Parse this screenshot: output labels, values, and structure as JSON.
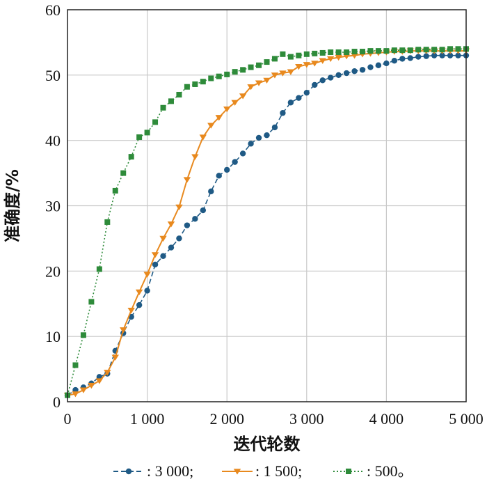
{
  "chart_data": {
    "type": "line",
    "xlabel": "迭代轮数",
    "ylabel": "准确度/%",
    "xlim": [
      0,
      5000
    ],
    "ylim": [
      0,
      60
    ],
    "x_ticks": [
      0,
      1000,
      2000,
      3000,
      4000,
      5000
    ],
    "x_tick_labels": [
      "0",
      "1 000",
      "2 000",
      "3 000",
      "4 000",
      "5 000"
    ],
    "y_ticks": [
      0,
      10,
      20,
      30,
      40,
      50,
      60
    ],
    "y_tick_labels": [
      "0",
      "10",
      "20",
      "30",
      "40",
      "50",
      "60"
    ],
    "grid": true,
    "legend_position": "bottom",
    "series": [
      {
        "name": ": 3 000;",
        "color": "#1f5a85",
        "line_style": "dashed",
        "marker": "circle",
        "x": [
          0,
          100,
          200,
          300,
          400,
          500,
          600,
          700,
          800,
          900,
          1000,
          1100,
          1200,
          1300,
          1400,
          1500,
          1600,
          1700,
          1800,
          1900,
          2000,
          2100,
          2200,
          2300,
          2400,
          2500,
          2600,
          2700,
          2800,
          2900,
          3000,
          3100,
          3200,
          3300,
          3400,
          3500,
          3600,
          3700,
          3800,
          3900,
          4000,
          4100,
          4200,
          4300,
          4400,
          4500,
          4600,
          4700,
          4800,
          4900,
          5000
        ],
        "y": [
          1.0,
          1.8,
          2.2,
          2.8,
          3.8,
          4.3,
          7.8,
          10.5,
          13.0,
          14.8,
          17.0,
          21.0,
          22.3,
          23.6,
          25.0,
          27.0,
          28.0,
          29.3,
          32.2,
          34.6,
          35.5,
          36.7,
          38.0,
          39.5,
          40.4,
          40.8,
          42.0,
          44.2,
          45.8,
          46.5,
          47.3,
          48.5,
          49.2,
          49.6,
          50.0,
          50.3,
          50.6,
          50.8,
          51.2,
          51.5,
          51.8,
          52.2,
          52.5,
          52.6,
          52.8,
          52.9,
          53.0,
          53.0,
          53.0,
          53.0,
          53.0
        ]
      },
      {
        "name": ": 1 500;",
        "color": "#e8891e",
        "line_style": "solid",
        "marker": "triangle-down",
        "x": [
          0,
          100,
          200,
          300,
          400,
          500,
          600,
          700,
          800,
          900,
          1000,
          1100,
          1200,
          1300,
          1400,
          1500,
          1600,
          1700,
          1800,
          1900,
          2000,
          2100,
          2200,
          2300,
          2400,
          2500,
          2600,
          2700,
          2800,
          2900,
          3000,
          3100,
          3200,
          3300,
          3400,
          3500,
          3600,
          3700,
          3800,
          3900,
          4000,
          4100,
          4200,
          4300,
          4400,
          4500,
          4600,
          4700,
          4800,
          4900,
          5000
        ],
        "y": [
          1.0,
          1.2,
          1.8,
          2.5,
          3.2,
          4.5,
          6.8,
          11.0,
          14.0,
          16.8,
          19.5,
          22.5,
          25.0,
          27.2,
          29.8,
          34.0,
          37.5,
          40.5,
          42.3,
          43.5,
          44.8,
          45.8,
          46.8,
          48.2,
          48.8,
          49.2,
          50.0,
          50.3,
          50.5,
          51.3,
          51.6,
          51.8,
          52.2,
          52.5,
          52.7,
          52.9,
          53.0,
          53.2,
          53.3,
          53.4,
          53.5,
          53.6,
          53.6,
          53.7,
          53.7,
          53.7,
          53.7,
          53.7,
          53.7,
          53.7,
          53.7
        ]
      },
      {
        "name": ": 500。",
        "color": "#2e8b3a",
        "line_style": "dotted",
        "marker": "square",
        "x": [
          0,
          100,
          200,
          300,
          400,
          500,
          600,
          700,
          800,
          900,
          1000,
          1100,
          1200,
          1300,
          1400,
          1500,
          1600,
          1700,
          1800,
          1900,
          2000,
          2100,
          2200,
          2300,
          2400,
          2500,
          2600,
          2700,
          2800,
          2900,
          3000,
          3100,
          3200,
          3300,
          3400,
          3500,
          3600,
          3700,
          3800,
          3900,
          4000,
          4100,
          4200,
          4300,
          4400,
          4500,
          4600,
          4700,
          4800,
          4900,
          5000
        ],
        "y": [
          1.0,
          5.6,
          10.2,
          15.3,
          20.3,
          27.5,
          32.3,
          35.0,
          37.5,
          40.5,
          41.2,
          42.8,
          45.0,
          46.0,
          47.0,
          48.2,
          48.6,
          49.0,
          49.5,
          49.8,
          50.1,
          50.5,
          50.8,
          51.2,
          51.5,
          52.0,
          52.5,
          53.2,
          52.8,
          53.0,
          53.2,
          53.3,
          53.4,
          53.5,
          53.5,
          53.5,
          53.6,
          53.6,
          53.7,
          53.7,
          53.7,
          53.8,
          53.8,
          53.8,
          53.9,
          53.9,
          53.9,
          53.9,
          54.0,
          54.0,
          54.0
        ]
      }
    ]
  }
}
